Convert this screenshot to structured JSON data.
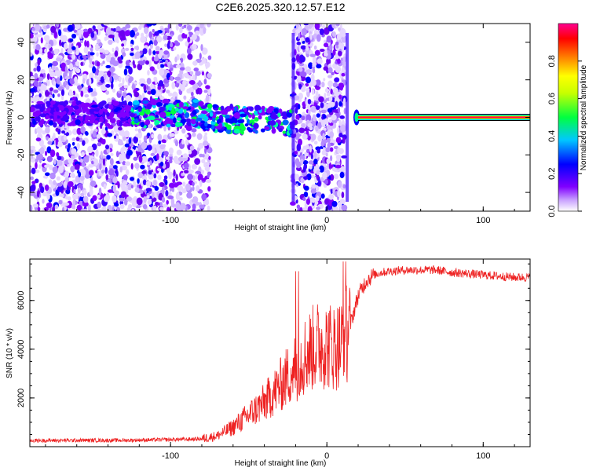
{
  "title": "C2E6.2025.320.12.57.E12",
  "chart_data": [
    {
      "type": "heatmap",
      "xlabel": "Height of straight line (km)",
      "ylabel": "Frequency (Hz)",
      "xlim": [
        -190,
        130
      ],
      "ylim": [
        -50,
        50
      ],
      "xticks": [
        -100,
        0,
        100
      ],
      "yticks": [
        -40,
        -20,
        0,
        20,
        40
      ],
      "colorbar": {
        "label": "Normalized spectral amplitude",
        "range": [
          0,
          1
        ],
        "ticks": [
          "0.0",
          "0.2",
          "0.4",
          "0.6",
          "0.8"
        ],
        "colors": [
          "#ffffff",
          "#8000ff",
          "#0000ff",
          "#00c8ff",
          "#00ff00",
          "#ffff00",
          "#ff8000",
          "#ff0000",
          "#ff00a0"
        ]
      },
      "description_regions": [
        {
          "x": [
            -190,
            -75
          ],
          "kind": "broadband noise"
        },
        {
          "x": [
            -120,
            -22
          ],
          "kind": "narrow band near 0 Hz with strong patches"
        },
        {
          "x": [
            -22,
            12
          ],
          "kind": "broadband noise"
        },
        {
          "x": [
            20,
            130
          ],
          "kind": "strong carrier line at 0 Hz"
        }
      ]
    },
    {
      "type": "line",
      "xlabel": "Height of straight line (km)",
      "ylabel": "SNR (10 * v/v)",
      "xlim": [
        -190,
        130
      ],
      "ylim": [
        0,
        7700
      ],
      "xticks": [
        -100,
        0,
        100
      ],
      "yticks": [
        2000,
        4000,
        6000
      ],
      "color": "#ee2222",
      "series": [
        {
          "x": [
            -190,
            -160,
            -130,
            -110,
            -90,
            -80,
            -70,
            -60,
            -50,
            -40,
            -30,
            -25,
            -20,
            -15,
            -10,
            -5,
            0,
            5,
            10,
            15,
            20,
            25,
            30,
            35,
            40,
            50,
            60,
            70,
            80,
            90,
            100,
            110,
            120,
            130
          ],
          "y": [
            250,
            260,
            260,
            280,
            300,
            320,
            450,
            800,
            1300,
            1800,
            2500,
            2900,
            3300,
            3700,
            4000,
            4200,
            4200,
            4100,
            4300,
            5000,
            6200,
            6800,
            7050,
            7150,
            7200,
            7250,
            7250,
            7250,
            7150,
            7100,
            7050,
            7000,
            6950,
            6950
          ]
        }
      ]
    }
  ]
}
